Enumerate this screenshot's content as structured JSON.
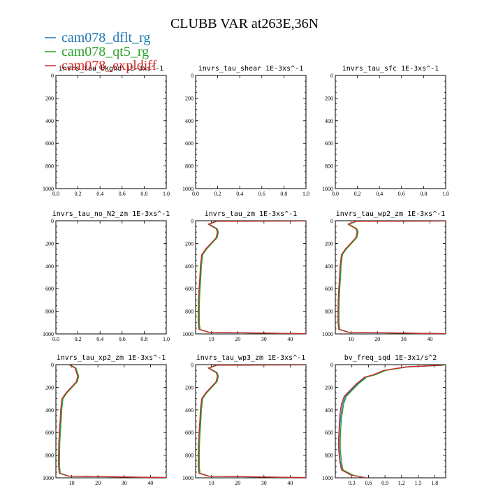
{
  "title": "CLUBB VAR at263E,36N",
  "legend": [
    {
      "label": "cam078_dflt_rg",
      "color": "#1f77b4"
    },
    {
      "label": "cam078_qt5_rg",
      "color": "#2ca02c"
    },
    {
      "label": "cam078_expldiff",
      "color": "#d62728"
    }
  ],
  "chart_data": [
    {
      "type": "line",
      "title": "invrs_tau_bkgnd 1E-3xs^-1",
      "xlim": [
        0,
        1
      ],
      "ylim": [
        1000,
        0
      ],
      "xticks": [
        "0.0",
        "0.2",
        "0.4",
        "0.6",
        "0.8",
        "1.0"
      ],
      "yticks": [
        "0",
        "200",
        "400",
        "600",
        "800",
        "1000"
      ],
      "series": []
    },
    {
      "type": "line",
      "title": "invrs_tau_shear 1E-3xs^-1",
      "xlim": [
        0,
        1
      ],
      "ylim": [
        1000,
        0
      ],
      "xticks": [
        "0.0",
        "0.2",
        "0.4",
        "0.6",
        "0.8",
        "1.0"
      ],
      "yticks": [
        "0",
        "200",
        "400",
        "600",
        "800",
        "1000"
      ],
      "series": []
    },
    {
      "type": "line",
      "title": "invrs_tau_sfc 1E-3xs^-1",
      "xlim": [
        0,
        1
      ],
      "ylim": [
        1000,
        0
      ],
      "xticks": [
        "0.0",
        "0.2",
        "0.4",
        "0.6",
        "0.8",
        "1.0"
      ],
      "yticks": [
        "0",
        "200",
        "400",
        "600",
        "800",
        "1000"
      ],
      "series": []
    },
    {
      "type": "line",
      "title": "invrs_tau_no_N2_zm 1E-3xs^-1",
      "xlim": [
        0,
        1
      ],
      "ylim": [
        1000,
        0
      ],
      "xticks": [
        "0.0",
        "0.2",
        "0.4",
        "0.6",
        "0.8",
        "1.0"
      ],
      "yticks": [
        "0",
        "200",
        "400",
        "600",
        "800",
        "1000"
      ],
      "series": []
    },
    {
      "type": "line",
      "title": "invrs_tau_zm 1E-3xs^-1",
      "xlim": [
        4,
        46
      ],
      "ylim": [
        1000,
        0
      ],
      "xticks": [
        "10",
        "20",
        "30",
        "40"
      ],
      "yticks": [
        "0",
        "200",
        "400",
        "600",
        "800",
        "1000"
      ],
      "series": [
        {
          "color": "#1f77b4",
          "x": [
            46,
            12,
            9,
            12,
            12.5,
            12,
            10,
            8,
            6.5,
            6,
            5.8,
            5.5,
            5.3,
            5.2,
            5.2,
            5.5,
            9,
            46
          ],
          "y": [
            2,
            5,
            30,
            70,
            100,
            150,
            200,
            250,
            300,
            400,
            500,
            600,
            700,
            800,
            900,
            960,
            985,
            998
          ]
        },
        {
          "color": "#2ca02c",
          "x": [
            46,
            12.2,
            9.2,
            12.2,
            12.7,
            12.2,
            10.2,
            8.2,
            6.7,
            6.2,
            6,
            5.7,
            5.5,
            5.4,
            5.4,
            5.7,
            9.2,
            46
          ],
          "y": [
            2,
            5,
            30,
            70,
            100,
            150,
            200,
            250,
            300,
            400,
            500,
            600,
            700,
            800,
            900,
            960,
            985,
            998
          ]
        },
        {
          "color": "#d62728",
          "x": [
            46,
            11.8,
            8.8,
            11.8,
            12.3,
            11.8,
            9.8,
            7.8,
            6.3,
            5.8,
            5.6,
            5.3,
            5.1,
            5,
            5,
            5.3,
            8.8,
            46
          ],
          "y": [
            2,
            5,
            30,
            70,
            100,
            150,
            200,
            250,
            300,
            400,
            500,
            600,
            700,
            800,
            900,
            960,
            985,
            998
          ]
        }
      ]
    },
    {
      "type": "line",
      "title": "invrs_tau_wp2_zm 1E-3xs^-1",
      "xlim": [
        4,
        46
      ],
      "ylim": [
        1000,
        0
      ],
      "xticks": [
        "10",
        "20",
        "30",
        "40"
      ],
      "yticks": [
        "0",
        "200",
        "400",
        "600",
        "800",
        "1000"
      ],
      "series": [
        {
          "color": "#1f77b4",
          "x": [
            46,
            12,
            9,
            12,
            12.5,
            12,
            10,
            8,
            6.5,
            6,
            5.8,
            5.5,
            5.3,
            5.2,
            5.2,
            5.5,
            9,
            46
          ],
          "y": [
            2,
            5,
            30,
            70,
            100,
            150,
            200,
            250,
            300,
            400,
            500,
            600,
            700,
            800,
            900,
            960,
            985,
            998
          ]
        },
        {
          "color": "#2ca02c",
          "x": [
            46,
            12.2,
            9.2,
            12.2,
            12.7,
            12.2,
            10.2,
            8.2,
            6.7,
            6.2,
            6,
            5.7,
            5.5,
            5.4,
            5.4,
            5.7,
            9.2,
            46
          ],
          "y": [
            2,
            5,
            30,
            70,
            100,
            150,
            200,
            250,
            300,
            400,
            500,
            600,
            700,
            800,
            900,
            960,
            985,
            998
          ]
        },
        {
          "color": "#d62728",
          "x": [
            46,
            11.8,
            8.8,
            11.8,
            12.3,
            11.8,
            9.8,
            7.8,
            6.3,
            5.8,
            5.6,
            5.3,
            5.1,
            5,
            5,
            5.3,
            8.8,
            46
          ],
          "y": [
            2,
            5,
            30,
            70,
            100,
            150,
            200,
            250,
            300,
            400,
            500,
            600,
            700,
            800,
            900,
            960,
            985,
            998
          ]
        }
      ]
    },
    {
      "type": "line",
      "title": "invrs_tau_xp2_zm 1E-3xs^-1",
      "xlim": [
        4,
        46
      ],
      "ylim": [
        1000,
        0
      ],
      "xticks": [
        "10",
        "20",
        "30",
        "40"
      ],
      "yticks": [
        "0",
        "200",
        "400",
        "600",
        "800",
        "1000"
      ],
      "series": [
        {
          "color": "#1f77b4",
          "x": [
            9,
            9.5,
            11.5,
            12,
            12.5,
            12,
            10,
            8,
            6.5,
            6,
            5.8,
            5.5,
            5.3,
            5.2,
            5.2,
            5.5,
            9,
            46
          ],
          "y": [
            2,
            5,
            30,
            70,
            100,
            150,
            200,
            250,
            300,
            400,
            500,
            600,
            700,
            800,
            900,
            960,
            985,
            998
          ]
        },
        {
          "color": "#2ca02c",
          "x": [
            9.2,
            9.7,
            11.7,
            12.2,
            12.7,
            12.2,
            10.2,
            8.2,
            6.7,
            6.2,
            6,
            5.7,
            5.5,
            5.4,
            5.4,
            5.7,
            9.2,
            46
          ],
          "y": [
            2,
            5,
            30,
            70,
            100,
            150,
            200,
            250,
            300,
            400,
            500,
            600,
            700,
            800,
            900,
            960,
            985,
            998
          ]
        },
        {
          "color": "#d62728",
          "x": [
            8.8,
            9.3,
            11.3,
            11.8,
            12.3,
            11.8,
            9.8,
            7.8,
            6.3,
            5.8,
            5.6,
            5.3,
            5.1,
            5,
            5,
            5.3,
            8.8,
            46
          ],
          "y": [
            2,
            5,
            30,
            70,
            100,
            150,
            200,
            250,
            300,
            400,
            500,
            600,
            700,
            800,
            900,
            960,
            985,
            998
          ]
        }
      ]
    },
    {
      "type": "line",
      "title": "invrs_tau_wp3_zm 1E-3xs^-1",
      "xlim": [
        4,
        46
      ],
      "ylim": [
        1000,
        0
      ],
      "xticks": [
        "10",
        "20",
        "30",
        "40"
      ],
      "yticks": [
        "0",
        "200",
        "400",
        "600",
        "800",
        "1000"
      ],
      "series": [
        {
          "color": "#1f77b4",
          "x": [
            46,
            12,
            9,
            12,
            12.5,
            12,
            10,
            8,
            6.5,
            6,
            5.8,
            5.5,
            5.3,
            5.2,
            5.2,
            5.5,
            9,
            46
          ],
          "y": [
            2,
            5,
            30,
            70,
            100,
            150,
            200,
            250,
            300,
            400,
            500,
            600,
            700,
            800,
            900,
            960,
            985,
            998
          ]
        },
        {
          "color": "#2ca02c",
          "x": [
            46,
            12.2,
            9.2,
            12.2,
            12.7,
            12.2,
            10.2,
            8.2,
            6.7,
            6.2,
            6,
            5.7,
            5.5,
            5.4,
            5.4,
            5.7,
            9.2,
            46
          ],
          "y": [
            2,
            5,
            30,
            70,
            100,
            150,
            200,
            250,
            300,
            400,
            500,
            600,
            700,
            800,
            900,
            960,
            985,
            998
          ]
        },
        {
          "color": "#d62728",
          "x": [
            46,
            11.8,
            8.8,
            11.8,
            12.3,
            11.8,
            9.8,
            7.8,
            6.3,
            5.8,
            5.6,
            5.3,
            5.1,
            5,
            5,
            5.3,
            8.8,
            46
          ],
          "y": [
            2,
            5,
            30,
            70,
            100,
            150,
            200,
            250,
            300,
            400,
            500,
            600,
            700,
            800,
            900,
            960,
            985,
            998
          ]
        }
      ]
    },
    {
      "type": "line",
      "title": "bv_freq_sqd 1E-3x1/s^2",
      "xlim": [
        0,
        2
      ],
      "ylim": [
        1000,
        0
      ],
      "xticks": [
        "0.3",
        "0.6",
        "0.9",
        "1.2",
        "1.5",
        "1.8"
      ],
      "yticks": [
        "0",
        "200",
        "400",
        "600",
        "800",
        "1000"
      ],
      "series": [
        {
          "color": "#1f77b4",
          "x": [
            1.95,
            1.3,
            0.9,
            0.7,
            0.55,
            0.5,
            0.4,
            0.3,
            0.18,
            0.13,
            0.1,
            0.08,
            0.07,
            0.07,
            0.09,
            0.12,
            0.3,
            0.5
          ],
          "y": [
            5,
            20,
            50,
            90,
            110,
            130,
            170,
            220,
            280,
            350,
            450,
            550,
            650,
            750,
            850,
            930,
            975,
            998
          ]
        },
        {
          "color": "#2ca02c",
          "x": [
            1.97,
            1.32,
            0.92,
            0.72,
            0.57,
            0.52,
            0.42,
            0.32,
            0.2,
            0.15,
            0.12,
            0.1,
            0.09,
            0.09,
            0.11,
            0.14,
            0.32,
            0.52
          ],
          "y": [
            5,
            20,
            50,
            90,
            110,
            130,
            170,
            220,
            280,
            350,
            450,
            550,
            650,
            750,
            850,
            930,
            975,
            998
          ]
        },
        {
          "color": "#d62728",
          "x": [
            1.93,
            1.28,
            0.88,
            0.68,
            0.53,
            0.48,
            0.38,
            0.28,
            0.16,
            0.11,
            0.08,
            0.07,
            0.06,
            0.06,
            0.08,
            0.11,
            0.28,
            0.55
          ],
          "y": [
            5,
            20,
            50,
            90,
            110,
            130,
            170,
            220,
            280,
            350,
            450,
            550,
            650,
            750,
            850,
            930,
            975,
            998
          ]
        }
      ]
    }
  ]
}
